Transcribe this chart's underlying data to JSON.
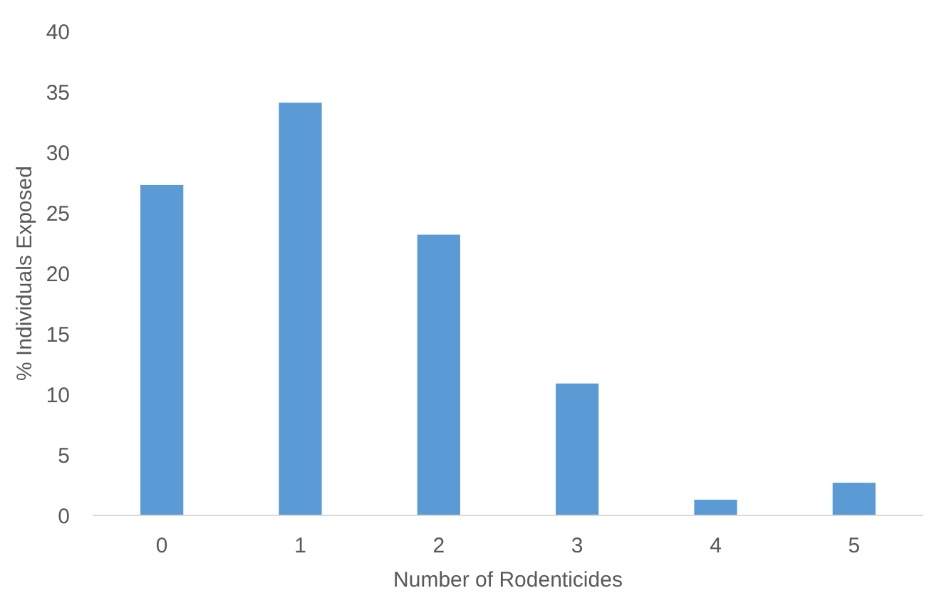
{
  "chart_data": {
    "type": "bar",
    "xlabel": "Number of Rodenticides",
    "ylabel": "% Individuals Exposed",
    "categories": [
      "0",
      "1",
      "2",
      "3",
      "4",
      "5"
    ],
    "values": [
      27.3,
      34.1,
      23.2,
      10.9,
      1.3,
      2.7
    ],
    "color": "#5b9bd5",
    "ylim": [
      0,
      40
    ],
    "yticks": [
      0,
      5,
      10,
      15,
      20,
      25,
      30,
      35,
      40
    ],
    "grid": false
  }
}
